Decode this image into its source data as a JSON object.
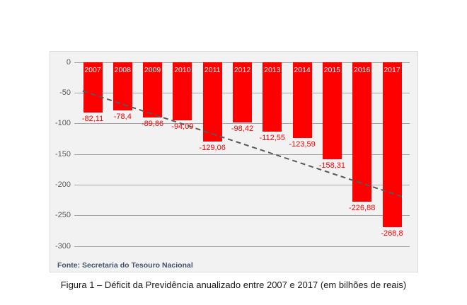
{
  "figure": {
    "source_note": "Fonte: Secretaria do Tesouro Nacional",
    "caption": "Figura 1 – Déficit da Previdência anualizado entre 2007 e 2017 (em bilhões de reais)"
  },
  "chart_data": {
    "type": "bar",
    "title": "",
    "xlabel": "",
    "ylabel": "",
    "categories": [
      "2007",
      "2008",
      "2009",
      "2010",
      "2011",
      "2012",
      "2013",
      "2014",
      "2015",
      "2016",
      "2017"
    ],
    "values": [
      -82.11,
      -78.4,
      -89.86,
      -94.09,
      -129.06,
      -98.42,
      -112.55,
      -123.59,
      -158.31,
      -226.88,
      -268.8
    ],
    "value_labels": [
      "-82,11",
      "-78,4",
      "-89,86",
      "-94,09",
      "-129,06",
      "-98,42",
      "-112,55",
      "-123,59",
      "-158,31",
      "-226,88",
      "-268,8"
    ],
    "ylim": [
      -300,
      0
    ],
    "y_ticks": [
      0,
      -50,
      -100,
      -150,
      -200,
      -250,
      -300
    ],
    "y_tick_labels": [
      "0",
      "-50",
      "-100",
      "-150",
      "-200",
      "-250",
      "-300"
    ],
    "grid": true,
    "legend": "none",
    "trendline": {
      "type": "linear",
      "style": "dashed",
      "start_category": "2007",
      "start_value": -52.2,
      "end_category": "2017",
      "end_value": -213.6,
      "color": "#595959"
    },
    "colors": {
      "bar": "#FE0000",
      "bar_year_label": "#FFFFFF",
      "value_label": "#FE0000",
      "axis_label": "#595959",
      "gridline": "#A6A6A6",
      "panel_background": "#F2F2F2",
      "panel_border": "#D9D9D9",
      "source_note": "#44546A"
    }
  }
}
